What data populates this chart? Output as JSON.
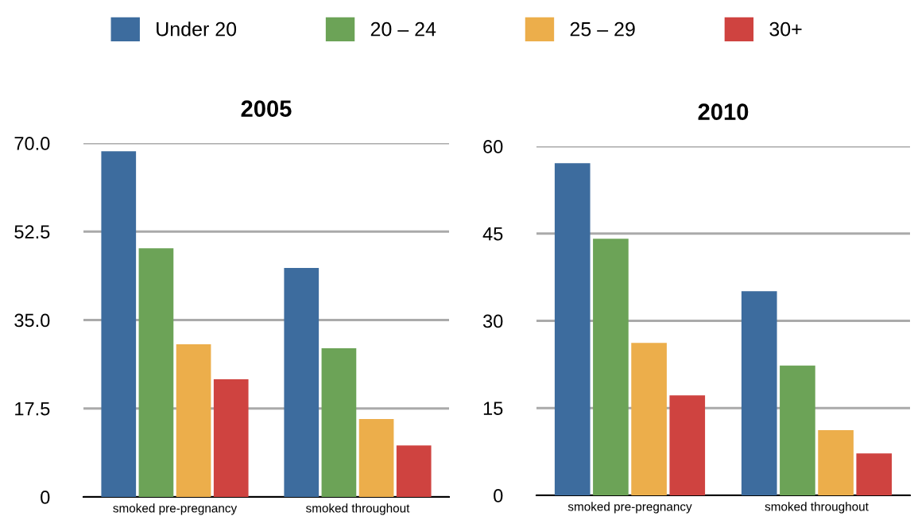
{
  "chart_data": [
    {
      "type": "bar",
      "title": "2005",
      "categories": [
        "smoked pre-pregnancy",
        "smoked throughout"
      ],
      "series": [
        {
          "name": "Under 20",
          "color": "#3d6c9e",
          "values": [
            68.4,
            45.3
          ]
        },
        {
          "name": "20 – 24",
          "color": "#6ca357",
          "values": [
            49.2,
            29.4
          ]
        },
        {
          "name": "25 – 29",
          "color": "#ecae4b",
          "values": [
            30.2,
            15.4
          ]
        },
        {
          "name": "30+",
          "color": "#cf4340",
          "values": [
            23.3,
            10.2
          ]
        }
      ],
      "ylim": [
        0,
        70
      ],
      "yticks": [
        {
          "value": 0,
          "label": "0"
        },
        {
          "value": 17.5,
          "label": "17.5"
        },
        {
          "value": 35,
          "label": "35.0"
        },
        {
          "value": 52.5,
          "label": "52.5"
        },
        {
          "value": 70,
          "label": "70.0"
        }
      ],
      "grid": "y",
      "legend": "top"
    },
    {
      "type": "bar",
      "title": "2010",
      "categories": [
        "smoked pre-pregnancy",
        "smoked throughout"
      ],
      "series": [
        {
          "name": "Under 20",
          "color": "#3d6c9e",
          "values": [
            57.1,
            35.1
          ]
        },
        {
          "name": "20 – 24",
          "color": "#6ca357",
          "values": [
            44.1,
            22.3
          ]
        },
        {
          "name": "25 – 29",
          "color": "#ecae4b",
          "values": [
            26.2,
            11.2
          ]
        },
        {
          "name": "30+",
          "color": "#cf4340",
          "values": [
            17.2,
            7.2
          ]
        }
      ],
      "ylim": [
        0,
        60
      ],
      "yticks": [
        0,
        15,
        30,
        45,
        60
      ],
      "grid": "y",
      "legend": "top"
    }
  ]
}
